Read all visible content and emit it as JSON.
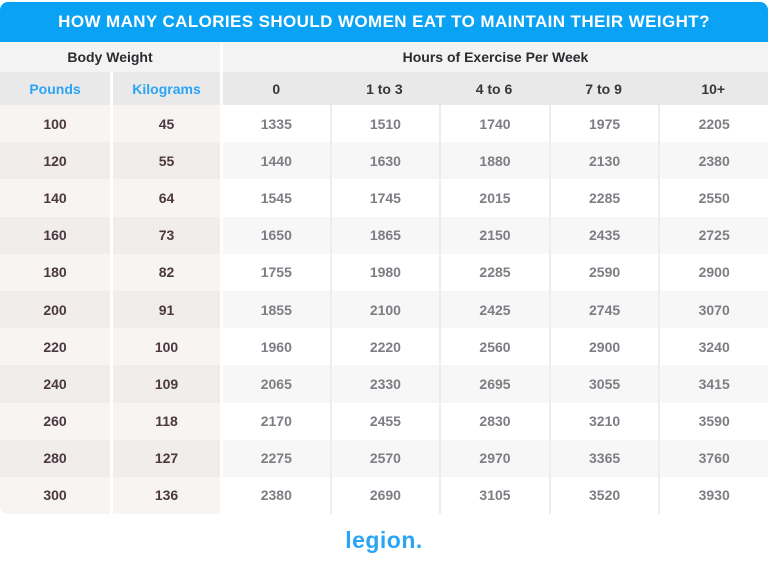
{
  "title": "HOW MANY CALORIES SHOULD WOMEN EAT TO MAINTAIN THEIR WEIGHT?",
  "chart_data": {
    "type": "table",
    "title": "How Many Calories Should Women Eat To Maintain Their Weight?",
    "group_headers": [
      {
        "label": "Body Weight",
        "span": 2
      },
      {
        "label": "Hours of Exercise Per Week",
        "span": 5
      }
    ],
    "columns": [
      "Pounds",
      "Kilograms",
      "0",
      "1 to 3",
      "4 to 6",
      "7 to 9",
      "10+"
    ],
    "rows": [
      [
        100,
        45,
        1335,
        1510,
        1740,
        1975,
        2205
      ],
      [
        120,
        55,
        1440,
        1630,
        1880,
        2130,
        2380
      ],
      [
        140,
        64,
        1545,
        1745,
        2015,
        2285,
        2550
      ],
      [
        160,
        73,
        1650,
        1865,
        2150,
        2435,
        2725
      ],
      [
        180,
        82,
        1755,
        1980,
        2285,
        2590,
        2900
      ],
      [
        200,
        91,
        1855,
        2100,
        2425,
        2745,
        3070
      ],
      [
        220,
        100,
        1960,
        2220,
        2560,
        2900,
        3240
      ],
      [
        240,
        109,
        2065,
        2330,
        2695,
        3055,
        3415
      ],
      [
        260,
        118,
        2170,
        2455,
        2830,
        3210,
        3590
      ],
      [
        280,
        127,
        2275,
        2570,
        2970,
        3365,
        3760
      ],
      [
        300,
        136,
        2380,
        2690,
        3105,
        3520,
        3930
      ]
    ]
  },
  "footer": {
    "logo_text": "legion."
  },
  "colors": {
    "header_blue": "#0aa2f4",
    "accent_blue": "#2aa4f4",
    "group_header_bg": "#f3f3f3",
    "subheader_bg": "#e9e9e9",
    "weight_row_light": "#f7f4f2",
    "weight_row_dark": "#f0edeb",
    "data_row_light": "#ffffff",
    "data_row_dark": "#f7f7f7",
    "weight_text": "#4b3840",
    "data_text": "#7e7d83"
  }
}
